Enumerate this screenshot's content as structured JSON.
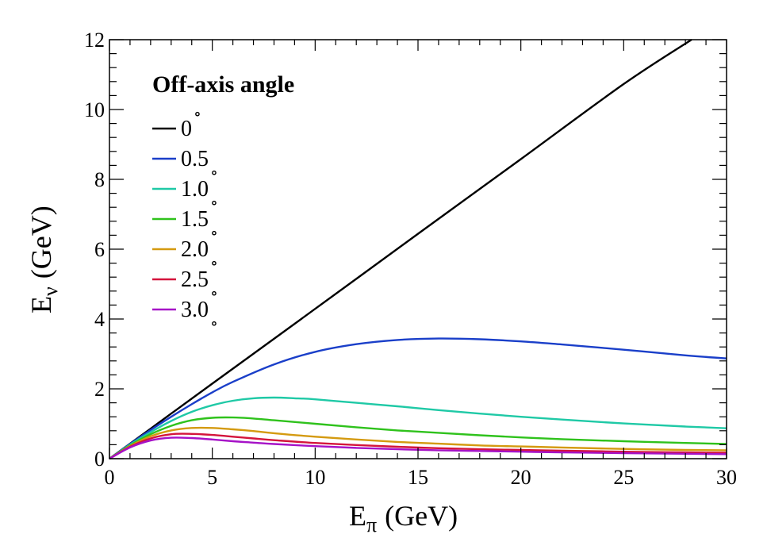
{
  "chart_data": {
    "type": "line",
    "title": "",
    "xlabel": "E",
    "xlabel_sub": "π",
    "xlabel_unit": "(GeV)",
    "ylabel": "E",
    "ylabel_sub": "ν",
    "ylabel_unit": "(GeV)",
    "xlim": [
      0,
      30
    ],
    "ylim": [
      0,
      12
    ],
    "x_ticks": [
      0,
      5,
      10,
      15,
      20,
      25,
      30
    ],
    "y_ticks": [
      0,
      2,
      4,
      6,
      8,
      10,
      12
    ],
    "grid": false,
    "legend": {
      "title": "Off-axis angle",
      "placement": "top-left",
      "degree_symbol": "∘"
    },
    "series": [
      {
        "name": "0",
        "color": "#000000",
        "x": [
          0,
          1,
          2,
          3,
          5,
          10,
          15,
          20,
          25,
          28.3
        ],
        "y": [
          0,
          0.43,
          0.86,
          1.29,
          2.15,
          4.29,
          6.44,
          8.58,
          10.73,
          12.0
        ]
      },
      {
        "name": "0.5",
        "color": "#1a3fc9",
        "x": [
          0,
          1,
          2,
          3,
          4,
          5,
          6,
          8,
          10,
          12,
          14,
          16,
          18,
          20,
          22,
          25,
          28,
          30
        ],
        "y": [
          0,
          0.42,
          0.82,
          1.2,
          1.56,
          1.9,
          2.2,
          2.7,
          3.06,
          3.28,
          3.4,
          3.44,
          3.42,
          3.36,
          3.27,
          3.12,
          2.96,
          2.87
        ]
      },
      {
        "name": "1.0",
        "color": "#1fc9a6",
        "x": [
          0,
          1,
          2,
          3,
          4,
          5,
          6,
          7,
          8,
          9,
          10,
          12,
          14,
          16,
          18,
          20,
          22,
          25,
          28,
          30
        ],
        "y": [
          0,
          0.4,
          0.76,
          1.08,
          1.34,
          1.53,
          1.66,
          1.73,
          1.75,
          1.73,
          1.7,
          1.6,
          1.5,
          1.39,
          1.29,
          1.2,
          1.12,
          1.01,
          0.92,
          0.87
        ]
      },
      {
        "name": "1.5",
        "color": "#2fc21c",
        "x": [
          0,
          1,
          2,
          3,
          4,
          5,
          6,
          7,
          8,
          10,
          12,
          14,
          16,
          18,
          20,
          22,
          25,
          28,
          30
        ],
        "y": [
          0,
          0.38,
          0.7,
          0.94,
          1.1,
          1.17,
          1.18,
          1.15,
          1.1,
          1.0,
          0.9,
          0.81,
          0.74,
          0.67,
          0.61,
          0.56,
          0.5,
          0.45,
          0.42
        ]
      },
      {
        "name": "2.0",
        "color": "#d49a10",
        "x": [
          0,
          1,
          2,
          3,
          4,
          5,
          6,
          7,
          8,
          10,
          12,
          14,
          16,
          18,
          20,
          22,
          25,
          28,
          30
        ],
        "y": [
          0,
          0.36,
          0.64,
          0.81,
          0.88,
          0.88,
          0.84,
          0.79,
          0.73,
          0.63,
          0.55,
          0.48,
          0.43,
          0.38,
          0.35,
          0.32,
          0.28,
          0.25,
          0.24
        ]
      },
      {
        "name": "2.5",
        "color": "#d4143c",
        "x": [
          0,
          1,
          2,
          3,
          4,
          5,
          6,
          7,
          8,
          10,
          12,
          14,
          16,
          18,
          20,
          22,
          25,
          28,
          30
        ],
        "y": [
          0,
          0.34,
          0.58,
          0.7,
          0.71,
          0.68,
          0.63,
          0.58,
          0.53,
          0.45,
          0.39,
          0.34,
          0.3,
          0.27,
          0.25,
          0.23,
          0.2,
          0.18,
          0.17
        ]
      },
      {
        "name": "3.0",
        "color": "#a612c7",
        "x": [
          0,
          1,
          2,
          3,
          4,
          5,
          6,
          7,
          8,
          10,
          12,
          14,
          16,
          18,
          20,
          22,
          25,
          28,
          30
        ],
        "y": [
          0,
          0.32,
          0.52,
          0.6,
          0.59,
          0.55,
          0.5,
          0.46,
          0.42,
          0.36,
          0.31,
          0.27,
          0.24,
          0.22,
          0.2,
          0.18,
          0.16,
          0.14,
          0.13
        ]
      }
    ]
  }
}
